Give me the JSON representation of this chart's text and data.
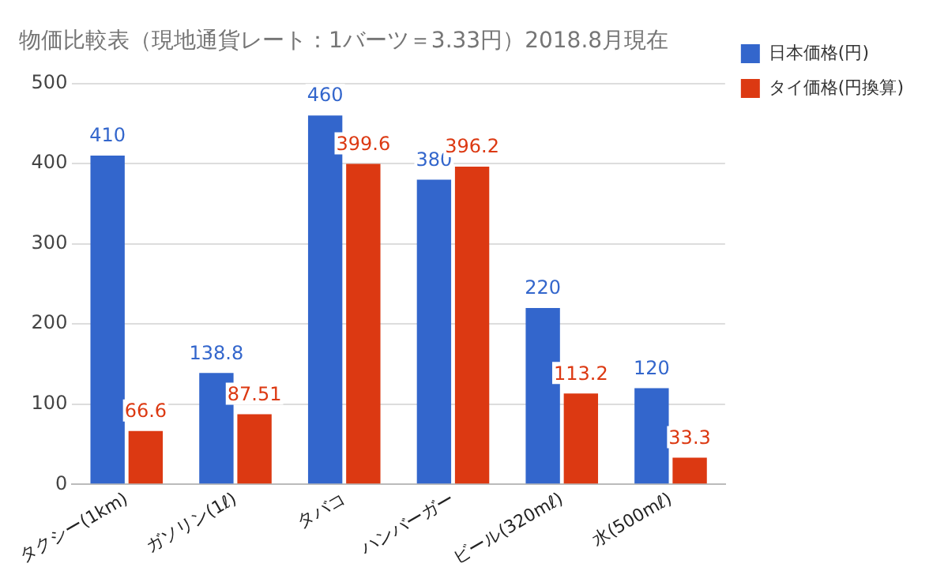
{
  "chart_data": {
    "type": "bar",
    "title": "物価比較表（現地通貨レート：1バーツ＝3.33円）2018.8月現在",
    "categories": [
      "タクシー(1km)",
      "ガソリン(1ℓ)",
      "タバコ",
      "ハンバーガー",
      "ビール(320mℓ)",
      "水(500mℓ)"
    ],
    "series": [
      {
        "name": "日本価格(円)",
        "color": "#3366cc",
        "values": [
          410,
          138.8,
          460,
          380,
          220,
          120
        ]
      },
      {
        "name": "タイ価格(円換算)",
        "color": "#dc3912",
        "values": [
          66.6,
          87.51,
          399.6,
          396.2,
          113.2,
          33.3
        ]
      }
    ],
    "ylim": [
      0,
      500
    ],
    "yticks": [
      0,
      100,
      200,
      300,
      400,
      500
    ],
    "grid": "y",
    "legend": "right",
    "data_labels": true
  }
}
